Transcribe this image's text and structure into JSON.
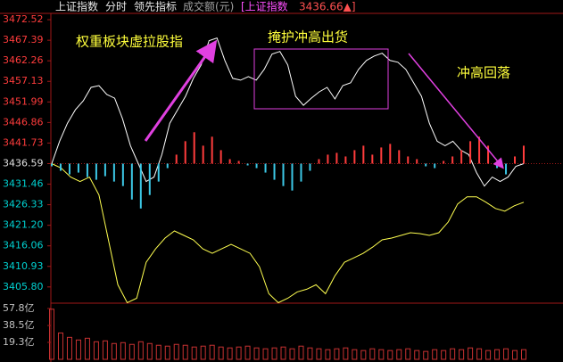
{
  "header": {
    "items": [
      "上证指数",
      "分时",
      "领先指标",
      "成交额(元)"
    ],
    "index_name": "[上证指数",
    "index_value": "3436.66▲]"
  },
  "annotations": [
    "权重板块虚拉股指",
    "掩护冲高出货",
    "冲高回落"
  ],
  "chart_data": [
    {
      "type": "line",
      "base": 3436.59,
      "ylim": [
        3402.2,
        3474.1
      ],
      "yticks": [
        3472.52,
        3467.39,
        3462.26,
        3457.13,
        3451.99,
        3446.86,
        3441.73,
        3436.59,
        3431.46,
        3426.33,
        {
          "value": 3421.2,
          "label": "3421.20"
        },
        3416.06,
        3410.93,
        {
          "value": 3405.8,
          "label": "3405.80"
        }
      ],
      "up_color": "#ff3c3c",
      "down_color": "#00d2d2",
      "base_color": "#e0e0e0",
      "series": [
        {
          "color": "#ffffff",
          "values": [
            3436.59,
            3442.19,
            3446.67,
            3450.03,
            3452.27,
            3455.63,
            3456.08,
            3453.84,
            3452.94,
            3447.79,
            3441.07,
            3436.59,
            3432.11,
            3433.23,
            3438.83,
            3446.67,
            3450.03,
            3453.39,
            3457.87,
            3461.23,
            3467.28,
            3467.95,
            3462.35,
            3457.87,
            3457.42,
            3458.32,
            3457.42,
            3460.11,
            3463.92,
            3464.59,
            3461.23,
            3453.39,
            3451.15,
            3452.94,
            3454.51,
            3455.63,
            3452.72,
            3456.08,
            3456.75,
            3460.11,
            3462.35,
            3463.47,
            3464.14,
            3462.35,
            3461.9,
            3460.11,
            3456.75,
            3453.39,
            3446.67,
            3442.19,
            3441.07,
            3442.19,
            3439.95,
            3438.83,
            3434.35,
            3430.99,
            3433.23,
            3432.11,
            3433.23,
            3435.92,
            3436.59
          ]
        },
        {
          "color": "#ffff50",
          "values": [
            3436.59,
            3435.47,
            3433.23,
            3432.11,
            3433.23,
            3428.75,
            3417.55,
            3406.35,
            3401.87,
            3402.99,
            3411.95,
            3415.31,
            3418.0,
            3419.79,
            3418.67,
            3417.55,
            3415.31,
            3414.19,
            3415.31,
            3416.43,
            3415.31,
            3414.19,
            3410.83,
            3404.11,
            3401.87,
            3402.99,
            3404.56,
            3405.23,
            3406.35,
            3404.11,
            3408.59,
            3411.95,
            3413.07,
            3414.19,
            3415.76,
            3417.55,
            3418.0,
            3418.67,
            3419.34,
            3419.12,
            3418.67,
            3419.34,
            3422.03,
            3426.51,
            3428.3,
            3428.3,
            3426.96,
            3425.39,
            3424.72,
            3426.06,
            3426.96
          ]
        },
        {
          "type": "bar",
          "color": "#ff3c3c",
          "down_color": "#3cc8e6",
          "values": [
            3435.92,
            3434.8,
            3433.9,
            3434.35,
            3433.23,
            3432.56,
            3433.45,
            3432.11,
            3430.99,
            3427.63,
            3425.39,
            3428.75,
            3432.11,
            3435.47,
            3438.83,
            3442.19,
            3444.43,
            3441.07,
            3443.31,
            3439.95,
            3437.71,
            3437.26,
            3436.14,
            3435.47,
            3434.35,
            3432.56,
            3430.99,
            3429.87,
            3432.11,
            3434.8,
            3437.71,
            3438.83,
            3439.28,
            3438.38,
            3439.95,
            3441.07,
            3438.83,
            3440.62,
            3441.52,
            3439.95,
            3438.38,
            3437.71,
            3435.92,
            3435.47,
            3437.26,
            3438.38,
            3439.95,
            3442.19,
            3443.31,
            3441.07,
            3435.47,
            3433.9,
            3438.38,
            3441.07
          ]
        }
      ]
    },
    {
      "type": "bar",
      "color": "#c83232",
      "label_color": "#c0c0c0",
      "ylim": [
        0,
        63.9
      ],
      "yticks": [
        {
          "value": 57.8,
          "label": "57.8亿"
        },
        {
          "value": 38.5,
          "label": "38.5亿"
        },
        {
          "value": 19.3,
          "label": "19.3亿"
        }
      ],
      "values": [
        57,
        30,
        25,
        22,
        24,
        20,
        21,
        18,
        19,
        17,
        20,
        18,
        16,
        15,
        17,
        16,
        14,
        15,
        16,
        14,
        13,
        14,
        15,
        13,
        12,
        13,
        14,
        12,
        15,
        13,
        12,
        11,
        12,
        13,
        11,
        10,
        12,
        11,
        10,
        11,
        12,
        10,
        9,
        11,
        10,
        12,
        11,
        13,
        12,
        10,
        11,
        12,
        10,
        11
      ]
    }
  ]
}
